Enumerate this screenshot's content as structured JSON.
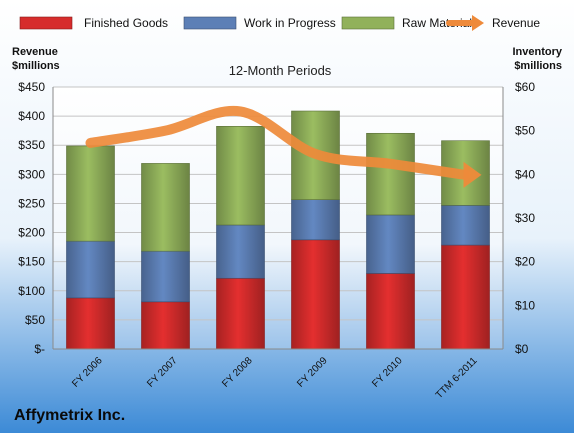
{
  "chart_data": {
    "type": "bar",
    "stacked": true,
    "title": "12-Month Periods",
    "left_axis_label": [
      "Revenue",
      "$millions"
    ],
    "right_axis_label": [
      "Inventory",
      "$millions"
    ],
    "categories": [
      "FY 2006",
      "FY 2007",
      "FY 2008",
      "FY 2009",
      "FY 2010",
      "TTM 6-2011"
    ],
    "series": [
      {
        "name": "Finished Goods",
        "color": "#cc2a2a",
        "values": [
          11.7,
          10.8,
          16.2,
          25.0,
          17.3,
          23.8
        ]
      },
      {
        "name": "Work in Progress",
        "color": "#5879ad",
        "values": [
          13.0,
          11.6,
          12.2,
          9.2,
          13.4,
          9.1
        ]
      },
      {
        "name": "Raw Materials",
        "color": "#8aa957",
        "values": [
          21.8,
          20.1,
          22.6,
          20.3,
          18.7,
          14.8
        ]
      }
    ],
    "line_series": {
      "name": "Revenue",
      "color": "#ee8a3a",
      "values": [
        354,
        375,
        408,
        335,
        318,
        299
      ]
    },
    "y_left": {
      "min": 0,
      "max": 450,
      "step": 50,
      "tick_labels": [
        "$-",
        "$50",
        "$100",
        "$150",
        "$200",
        "$250",
        "$300",
        "$350",
        "$400",
        "$450"
      ]
    },
    "y_right": {
      "min": 0,
      "max": 60,
      "step": 10,
      "tick_labels": [
        "$0",
        "$10",
        "$20",
        "$30",
        "$40",
        "$50",
        "$60"
      ]
    },
    "grid": true,
    "legend_position": "top"
  },
  "footer": {
    "company": "Affymetrix Inc."
  }
}
